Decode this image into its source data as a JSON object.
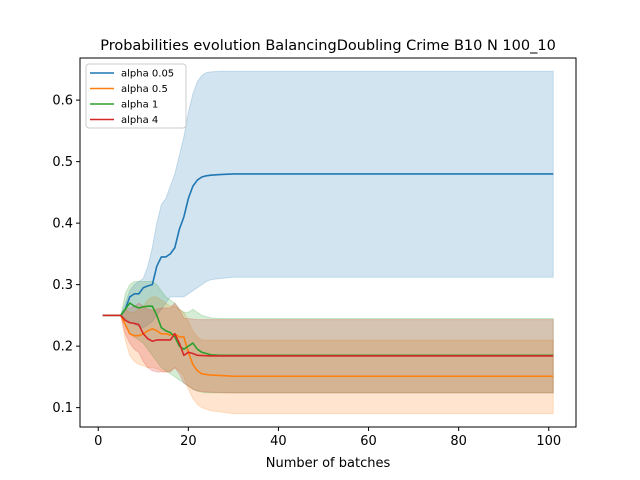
{
  "chart_data": {
    "type": "line",
    "title": "Probabilities evolution BalancingDoubling Crime B10 N 100_10",
    "xlabel": "Number of batches",
    "ylabel": "",
    "xlim": [
      -4.05,
      106.05
    ],
    "ylim": [
      0.0685,
      0.6685
    ],
    "xticks": [
      0,
      20,
      40,
      60,
      80,
      100
    ],
    "yticks": [
      0.1,
      0.2,
      0.3,
      0.4,
      0.5,
      0.6
    ],
    "xtick_labels": [
      "0",
      "20",
      "40",
      "60",
      "80",
      "100"
    ],
    "ytick_labels": [
      "0.1",
      "0.2",
      "0.3",
      "0.4",
      "0.5",
      "0.6"
    ],
    "grid": false,
    "legend_position": "upper left",
    "series": [
      {
        "name": "alpha 0.05",
        "color": "#1f77b4",
        "x": [
          1,
          5,
          6,
          7,
          8,
          9,
          10,
          11,
          12,
          13,
          14,
          15,
          16,
          17,
          18,
          19,
          20,
          21,
          22,
          23,
          24,
          25,
          27,
          30,
          40,
          60,
          80,
          101
        ],
        "y": [
          0.25,
          0.25,
          0.26,
          0.28,
          0.285,
          0.285,
          0.295,
          0.298,
          0.3,
          0.33,
          0.345,
          0.345,
          0.35,
          0.36,
          0.39,
          0.41,
          0.44,
          0.46,
          0.47,
          0.475,
          0.477,
          0.478,
          0.479,
          0.48,
          0.48,
          0.48,
          0.48,
          0.48
        ],
        "lower": [
          0.25,
          0.25,
          0.245,
          0.24,
          0.235,
          0.232,
          0.23,
          0.235,
          0.24,
          0.25,
          0.26,
          0.27,
          0.28,
          0.28,
          0.28,
          0.28,
          0.285,
          0.29,
          0.295,
          0.3,
          0.305,
          0.308,
          0.31,
          0.312,
          0.312,
          0.312,
          0.312,
          0.312
        ],
        "upper": [
          0.25,
          0.25,
          0.27,
          0.29,
          0.3,
          0.305,
          0.31,
          0.33,
          0.36,
          0.4,
          0.43,
          0.44,
          0.46,
          0.48,
          0.51,
          0.54,
          0.58,
          0.61,
          0.63,
          0.64,
          0.645,
          0.646,
          0.647,
          0.647,
          0.647,
          0.647,
          0.647,
          0.647
        ]
      },
      {
        "name": "alpha 0.5",
        "color": "#ff7f0e",
        "x": [
          1,
          5,
          6,
          7,
          8,
          9,
          10,
          11,
          12,
          13,
          14,
          15,
          16,
          17,
          18,
          19,
          20,
          21,
          22,
          23,
          25,
          28,
          30,
          40,
          60,
          80,
          101
        ],
        "y": [
          0.25,
          0.25,
          0.235,
          0.22,
          0.217,
          0.217,
          0.22,
          0.225,
          0.228,
          0.225,
          0.22,
          0.22,
          0.218,
          0.22,
          0.215,
          0.215,
          0.19,
          0.17,
          0.16,
          0.155,
          0.153,
          0.152,
          0.151,
          0.151,
          0.151,
          0.151,
          0.151
        ],
        "lower": [
          0.25,
          0.25,
          0.21,
          0.185,
          0.175,
          0.17,
          0.168,
          0.165,
          0.165,
          0.163,
          0.16,
          0.158,
          0.16,
          0.165,
          0.16,
          0.15,
          0.13,
          0.115,
          0.105,
          0.1,
          0.095,
          0.092,
          0.09,
          0.09,
          0.09,
          0.09,
          0.09
        ],
        "upper": [
          0.25,
          0.25,
          0.26,
          0.255,
          0.255,
          0.26,
          0.265,
          0.275,
          0.28,
          0.28,
          0.275,
          0.27,
          0.265,
          0.265,
          0.26,
          0.255,
          0.24,
          0.225,
          0.215,
          0.21,
          0.21,
          0.21,
          0.21,
          0.21,
          0.21,
          0.21,
          0.21
        ]
      },
      {
        "name": "alpha 1",
        "color": "#2ca02c",
        "x": [
          1,
          5,
          6,
          7,
          8,
          9,
          10,
          11,
          12,
          13,
          14,
          15,
          16,
          17,
          18,
          19,
          20,
          21,
          22,
          23,
          24,
          25,
          27,
          30,
          40,
          60,
          80,
          101
        ],
        "y": [
          0.25,
          0.25,
          0.26,
          0.27,
          0.265,
          0.262,
          0.264,
          0.265,
          0.265,
          0.25,
          0.23,
          0.225,
          0.222,
          0.215,
          0.2,
          0.195,
          0.2,
          0.205,
          0.195,
          0.19,
          0.188,
          0.186,
          0.185,
          0.185,
          0.185,
          0.185,
          0.185,
          0.185
        ],
        "lower": [
          0.25,
          0.25,
          0.235,
          0.22,
          0.215,
          0.21,
          0.205,
          0.195,
          0.185,
          0.175,
          0.165,
          0.16,
          0.155,
          0.15,
          0.145,
          0.14,
          0.135,
          0.13,
          0.127,
          0.125,
          0.124,
          0.124,
          0.124,
          0.124,
          0.124,
          0.124,
          0.124,
          0.124
        ],
        "upper": [
          0.25,
          0.25,
          0.285,
          0.3,
          0.305,
          0.305,
          0.305,
          0.305,
          0.305,
          0.3,
          0.29,
          0.28,
          0.275,
          0.27,
          0.26,
          0.255,
          0.255,
          0.26,
          0.255,
          0.25,
          0.248,
          0.246,
          0.245,
          0.245,
          0.245,
          0.245,
          0.245,
          0.245
        ]
      },
      {
        "name": "alpha 4",
        "color": "#d62728",
        "x": [
          1,
          5,
          6,
          7,
          8,
          9,
          10,
          11,
          12,
          13,
          14,
          15,
          16,
          17,
          18,
          19,
          20,
          21,
          22,
          25,
          30,
          40,
          60,
          80,
          101
        ],
        "y": [
          0.25,
          0.25,
          0.242,
          0.238,
          0.237,
          0.235,
          0.22,
          0.212,
          0.208,
          0.21,
          0.21,
          0.21,
          0.21,
          0.22,
          0.205,
          0.185,
          0.19,
          0.188,
          0.185,
          0.184,
          0.184,
          0.184,
          0.184,
          0.184,
          0.184
        ],
        "lower": [
          0.25,
          0.25,
          0.22,
          0.205,
          0.195,
          0.19,
          0.175,
          0.165,
          0.16,
          0.158,
          0.158,
          0.158,
          0.158,
          0.165,
          0.155,
          0.14,
          0.135,
          0.13,
          0.127,
          0.125,
          0.124,
          0.124,
          0.124,
          0.124,
          0.124
        ],
        "upper": [
          0.25,
          0.25,
          0.26,
          0.262,
          0.265,
          0.27,
          0.265,
          0.26,
          0.258,
          0.26,
          0.262,
          0.262,
          0.262,
          0.27,
          0.26,
          0.245,
          0.245,
          0.244,
          0.243,
          0.243,
          0.243,
          0.243,
          0.243,
          0.243,
          0.243
        ]
      }
    ]
  }
}
